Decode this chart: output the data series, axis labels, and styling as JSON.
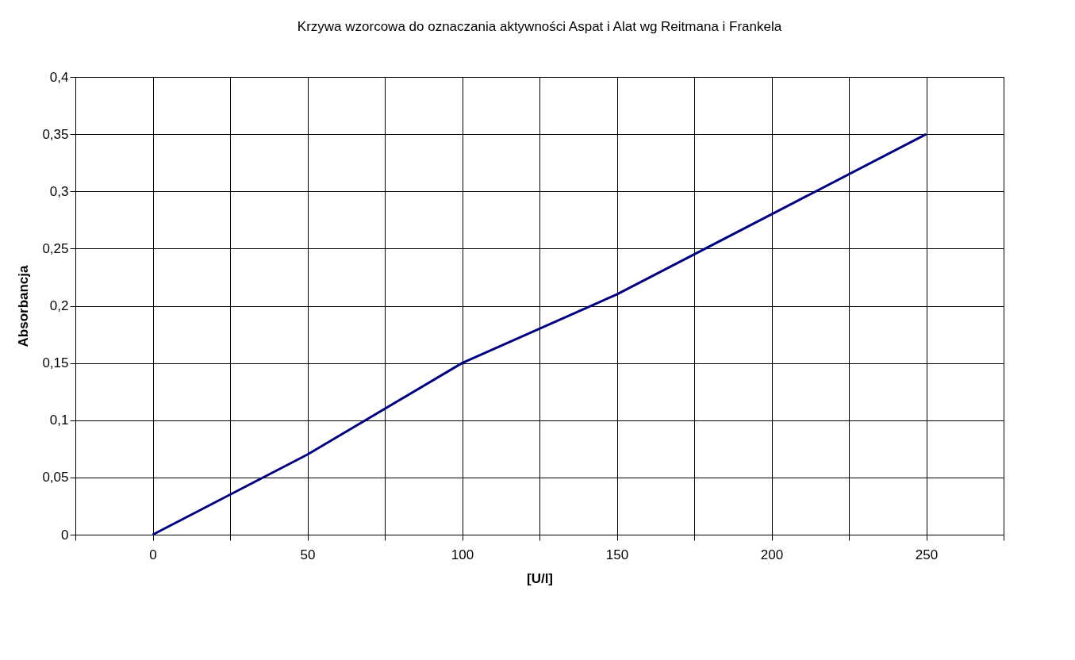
{
  "chart_data": {
    "type": "line",
    "title": "Krzywa wzorcowa do oznaczania aktywności Aspat i Alat wg Reitmana i Frankela",
    "xlabel": "[U/l]",
    "ylabel": "Absorbancja",
    "x": [
      0,
      50,
      100,
      150,
      200,
      250
    ],
    "series": [
      {
        "color": "#000080",
        "values": [
          0,
          0.07,
          0.15,
          0.21,
          0.28,
          0.35
        ]
      }
    ],
    "xlim": [
      -25,
      275
    ],
    "xticks": [
      {
        "value": -25,
        "label": null
      },
      0,
      {
        "value": 25,
        "label": null
      },
      50,
      {
        "value": 75,
        "label": null
      },
      100,
      {
        "value": 125,
        "label": null
      },
      150,
      {
        "value": 175,
        "label": null
      },
      200,
      {
        "value": 225,
        "label": null
      },
      250,
      {
        "value": 275,
        "label": null
      }
    ],
    "ylim": [
      0,
      0.4
    ],
    "yticks": [
      {
        "value": 0,
        "label": "0"
      },
      {
        "value": 0.05,
        "label": "0,05"
      },
      {
        "value": 0.1,
        "label": "0,1"
      },
      {
        "value": 0.15,
        "label": "0,15"
      },
      {
        "value": 0.2,
        "label": "0,2"
      },
      {
        "value": 0.25,
        "label": "0,25"
      },
      {
        "value": 0.3,
        "label": "0,3"
      },
      {
        "value": 0.35,
        "label": "0,35"
      },
      {
        "value": 0.4,
        "label": "0,4"
      }
    ],
    "grid": true,
    "marker": "none",
    "line_style": "solid"
  }
}
